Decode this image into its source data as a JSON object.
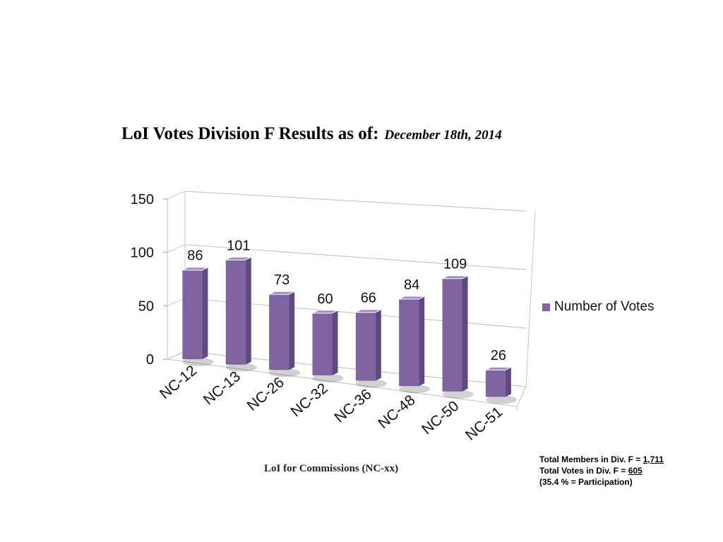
{
  "title": {
    "main": "LoI Votes Division F Results as of:",
    "date": "December 18th, 2014"
  },
  "legend": {
    "label": "Number of Votes"
  },
  "notes": {
    "members_label": "Total Members in Div. F = ",
    "members_value": "1,711",
    "votes_label": "Total Votes in Div. F = ",
    "votes_value": "605",
    "participation": "(35.4 % = Participation)"
  },
  "chart_data": {
    "type": "bar",
    "title": "LoI Votes Division F Results as of: December 18th, 2014",
    "xlabel": "LoI for Commissions (NC-xx)",
    "ylabel": "",
    "ylim": [
      0,
      150
    ],
    "yticks": [
      0,
      50,
      100,
      150
    ],
    "grid": true,
    "legend_position": "right",
    "colors": {
      "bar": "#8064a2",
      "bar_side": "#5f4a80",
      "bar_top": "#a08cc2"
    },
    "categories": [
      "NC-12",
      "NC-13",
      "NC-26",
      "NC-32",
      "NC-36",
      "NC-48",
      "NC-50",
      "NC-51"
    ],
    "series": [
      {
        "name": "Number of Votes",
        "values": [
          86,
          101,
          73,
          60,
          66,
          84,
          109,
          26
        ]
      }
    ]
  }
}
